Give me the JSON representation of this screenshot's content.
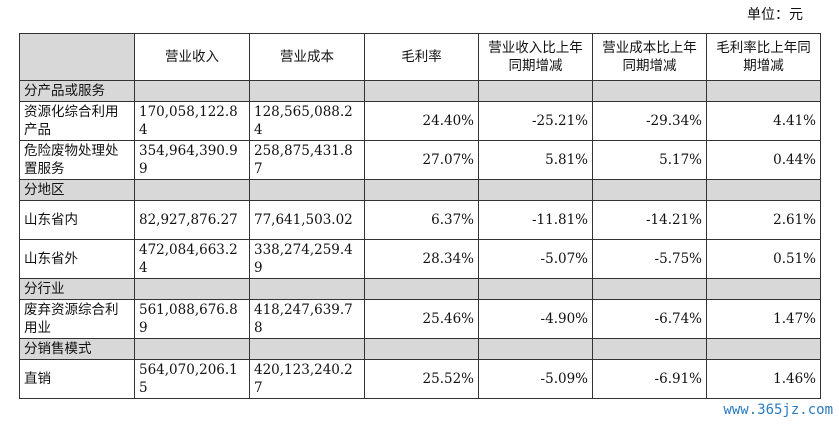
{
  "unit_label": "单位：元",
  "columns": [
    "",
    "营业收入",
    "营业成本",
    "毛利率",
    "营业收入比上年同期增减",
    "营业成本比上年同期增减",
    "毛利率比上年同期增减"
  ],
  "sections": [
    {
      "title": "分产品或服务",
      "rows": [
        {
          "label": "资源化综合利用产品",
          "revenue": "170,058,122.84",
          "cost": "128,565,088.24",
          "margin": "24.40%",
          "rev_change": "-25.21%",
          "cost_change": "-29.34%",
          "margin_change": "4.41%"
        },
        {
          "label": "危险废物处理处置服务",
          "revenue": "354,964,390.99",
          "cost": "258,875,431.87",
          "margin": "27.07%",
          "rev_change": "5.81%",
          "cost_change": "5.17%",
          "margin_change": "0.44%"
        }
      ]
    },
    {
      "title": "分地区",
      "rows": [
        {
          "label": "山东省内",
          "revenue": "82,927,876.27",
          "cost": "77,641,503.02",
          "margin": "6.37%",
          "rev_change": "-11.81%",
          "cost_change": "-14.21%",
          "margin_change": "2.61%"
        },
        {
          "label": "山东省外",
          "revenue": "472,084,663.24",
          "cost": "338,274,259.49",
          "margin": "28.34%",
          "rev_change": "-5.07%",
          "cost_change": "-5.75%",
          "margin_change": "0.51%"
        }
      ]
    },
    {
      "title": "分行业",
      "rows": [
        {
          "label": "废弃资源综合利用业",
          "revenue": "561,088,676.89",
          "cost": "418,247,639.78",
          "margin": "25.46%",
          "rev_change": "-4.90%",
          "cost_change": "-6.74%",
          "margin_change": "1.47%"
        }
      ]
    },
    {
      "title": "分销售模式",
      "rows": [
        {
          "label": "直销",
          "revenue": "564,070,206.15",
          "cost": "420,123,240.27",
          "margin": "25.52%",
          "rev_change": "-5.09%",
          "cost_change": "-6.91%",
          "margin_change": "1.46%"
        }
      ]
    }
  ],
  "watermark": "www.365jz.com"
}
